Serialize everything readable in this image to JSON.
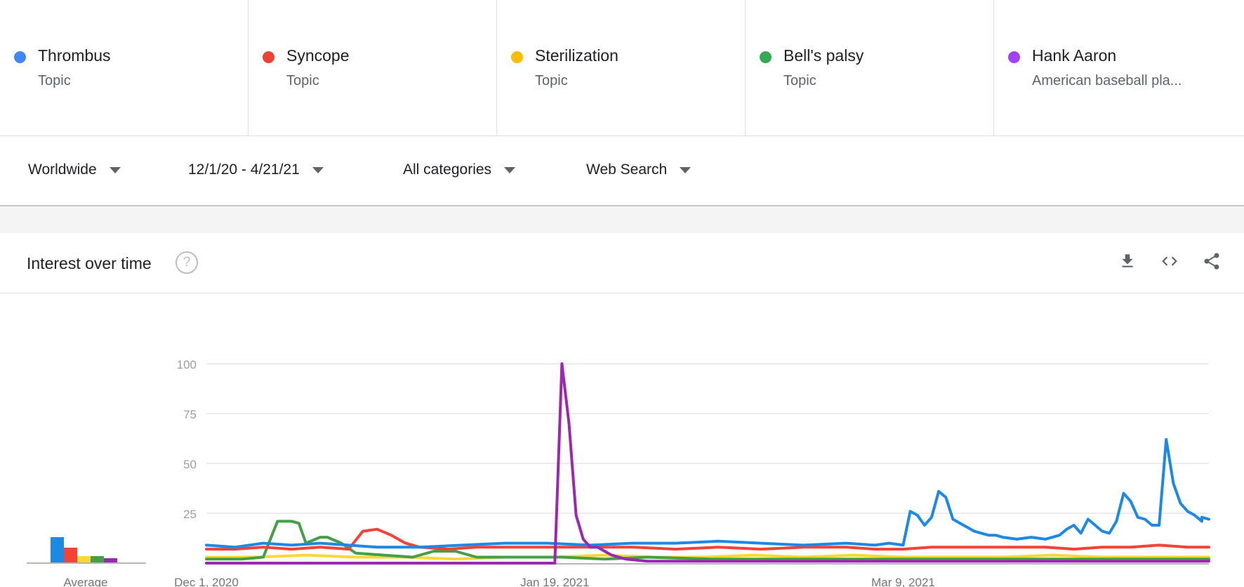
{
  "terms": [
    {
      "name": "Thrombus",
      "sub": "Topic",
      "color": "#4285f4"
    },
    {
      "name": "Syncope",
      "sub": "Topic",
      "color": "#ea4335"
    },
    {
      "name": "Sterilization",
      "sub": "Topic",
      "color": "#fbbc04"
    },
    {
      "name": "Bell's palsy",
      "sub": "Topic",
      "color": "#34a853"
    },
    {
      "name": "Hank Aaron",
      "sub": "American baseball pla...",
      "color": "#a142f4"
    }
  ],
  "filters": {
    "region": "Worldwide",
    "date_range": "12/1/20 - 4/21/21",
    "category": "All categories",
    "search_type": "Web Search"
  },
  "panel": {
    "title": "Interest over time",
    "help_icon": "question-mark-circle-icon",
    "tools": [
      "download-icon",
      "embed-code-icon",
      "share-icon"
    ]
  },
  "average_label": "Average",
  "chart_data": {
    "type": "line",
    "x_ticks": [
      "Dec 1, 2020",
      "Jan 19, 2021",
      "Mar 9, 2021"
    ],
    "x_range": [
      "2020-12-01",
      "2021-04-21"
    ],
    "ylim": [
      0,
      100
    ],
    "y_ticks": [
      "100",
      "75",
      "50",
      "25"
    ],
    "grid": true,
    "averages": [
      {
        "name": "Thrombus",
        "value": 12,
        "color": "#1e88e5"
      },
      {
        "name": "Syncope",
        "value": 7,
        "color": "#f44336"
      },
      {
        "name": "Sterilization",
        "value": 3,
        "color": "#fdd835"
      },
      {
        "name": "Bell's palsy",
        "value": 3,
        "color": "#43a047"
      },
      {
        "name": "Hank Aaron",
        "value": 2,
        "color": "#9c27b0"
      }
    ],
    "series": [
      {
        "name": "Thrombus",
        "color": "#1e88e5",
        "points": [
          [
            "2020-12-01",
            9
          ],
          [
            "2020-12-05",
            8
          ],
          [
            "2020-12-09",
            10
          ],
          [
            "2020-12-13",
            9
          ],
          [
            "2020-12-17",
            10
          ],
          [
            "2020-12-21",
            9
          ],
          [
            "2020-12-25",
            8
          ],
          [
            "2020-12-31",
            8
          ],
          [
            "2021-01-06",
            9
          ],
          [
            "2021-01-12",
            10
          ],
          [
            "2021-01-18",
            10
          ],
          [
            "2021-01-24",
            9
          ],
          [
            "2021-01-30",
            10
          ],
          [
            "2021-02-05",
            10
          ],
          [
            "2021-02-11",
            11
          ],
          [
            "2021-02-17",
            10
          ],
          [
            "2021-02-23",
            9
          ],
          [
            "2021-03-01",
            10
          ],
          [
            "2021-03-05",
            9
          ],
          [
            "2021-03-07",
            10
          ],
          [
            "2021-03-09",
            9
          ],
          [
            "2021-03-10",
            26
          ],
          [
            "2021-03-11",
            24
          ],
          [
            "2021-03-12",
            19
          ],
          [
            "2021-03-13",
            23
          ],
          [
            "2021-03-14",
            36
          ],
          [
            "2021-03-15",
            33
          ],
          [
            "2021-03-16",
            22
          ],
          [
            "2021-03-17",
            20
          ],
          [
            "2021-03-18",
            18
          ],
          [
            "2021-03-19",
            16
          ],
          [
            "2021-03-20",
            15
          ],
          [
            "2021-03-21",
            14
          ],
          [
            "2021-03-22",
            14
          ],
          [
            "2021-03-23",
            13
          ],
          [
            "2021-03-25",
            12
          ],
          [
            "2021-03-27",
            13
          ],
          [
            "2021-03-29",
            12
          ],
          [
            "2021-03-31",
            14
          ],
          [
            "2021-04-01",
            17
          ],
          [
            "2021-04-02",
            19
          ],
          [
            "2021-04-03",
            15
          ],
          [
            "2021-04-04",
            22
          ],
          [
            "2021-04-05",
            19
          ],
          [
            "2021-04-06",
            16
          ],
          [
            "2021-04-07",
            15
          ],
          [
            "2021-04-08",
            21
          ],
          [
            "2021-04-09",
            35
          ],
          [
            "2021-04-10",
            31
          ],
          [
            "2021-04-11",
            23
          ],
          [
            "2021-04-12",
            22
          ],
          [
            "2021-04-13",
            19
          ],
          [
            "2021-04-14",
            19
          ],
          [
            "2021-04-15",
            62
          ],
          [
            "2021-04-16",
            40
          ],
          [
            "2021-04-17",
            30
          ],
          [
            "2021-04-18",
            26
          ],
          [
            "2021-04-19",
            24
          ],
          [
            "2021-04-20",
            21
          ],
          [
            "2021-04-20",
            23
          ],
          [
            "2021-04-21",
            22
          ]
        ]
      },
      {
        "name": "Syncope",
        "color": "#f44336",
        "points": [
          [
            "2020-12-01",
            7
          ],
          [
            "2020-12-05",
            7
          ],
          [
            "2020-12-09",
            8
          ],
          [
            "2020-12-13",
            7
          ],
          [
            "2020-12-17",
            8
          ],
          [
            "2020-12-21",
            7
          ],
          [
            "2020-12-23",
            16
          ],
          [
            "2020-12-25",
            17
          ],
          [
            "2020-12-27",
            14
          ],
          [
            "2020-12-29",
            10
          ],
          [
            "2020-12-31",
            8
          ],
          [
            "2021-01-04",
            7
          ],
          [
            "2021-01-08",
            8
          ],
          [
            "2021-01-12",
            8
          ],
          [
            "2021-01-18",
            8
          ],
          [
            "2021-01-24",
            8
          ],
          [
            "2021-01-30",
            8
          ],
          [
            "2021-02-05",
            7
          ],
          [
            "2021-02-11",
            8
          ],
          [
            "2021-02-17",
            7
          ],
          [
            "2021-02-23",
            8
          ],
          [
            "2021-03-01",
            8
          ],
          [
            "2021-03-05",
            7
          ],
          [
            "2021-03-09",
            7
          ],
          [
            "2021-03-13",
            8
          ],
          [
            "2021-03-17",
            8
          ],
          [
            "2021-03-21",
            8
          ],
          [
            "2021-03-25",
            8
          ],
          [
            "2021-03-29",
            8
          ],
          [
            "2021-04-02",
            7
          ],
          [
            "2021-04-06",
            8
          ],
          [
            "2021-04-10",
            8
          ],
          [
            "2021-04-14",
            9
          ],
          [
            "2021-04-18",
            8
          ],
          [
            "2021-04-21",
            8
          ]
        ]
      },
      {
        "name": "Sterilization",
        "color": "#fdd835",
        "points": [
          [
            "2020-12-01",
            3
          ],
          [
            "2020-12-08",
            3
          ],
          [
            "2020-12-15",
            4
          ],
          [
            "2020-12-22",
            3
          ],
          [
            "2020-12-29",
            3
          ],
          [
            "2021-01-05",
            2
          ],
          [
            "2021-01-12",
            3
          ],
          [
            "2021-01-19",
            3
          ],
          [
            "2021-01-26",
            4
          ],
          [
            "2021-02-02",
            3
          ],
          [
            "2021-02-09",
            3
          ],
          [
            "2021-02-16",
            4
          ],
          [
            "2021-02-23",
            3
          ],
          [
            "2021-03-02",
            4
          ],
          [
            "2021-03-09",
            3
          ],
          [
            "2021-03-16",
            3
          ],
          [
            "2021-03-23",
            3
          ],
          [
            "2021-03-30",
            4
          ],
          [
            "2021-04-06",
            3
          ],
          [
            "2021-04-13",
            3
          ],
          [
            "2021-04-21",
            3
          ]
        ]
      },
      {
        "name": "Bell's palsy",
        "color": "#43a047",
        "points": [
          [
            "2020-12-01",
            2
          ],
          [
            "2020-12-06",
            2
          ],
          [
            "2020-12-09",
            3
          ],
          [
            "2020-12-11",
            21
          ],
          [
            "2020-12-13",
            21
          ],
          [
            "2020-12-14",
            20
          ],
          [
            "2020-12-15",
            10
          ],
          [
            "2020-12-17",
            13
          ],
          [
            "2020-12-18",
            13
          ],
          [
            "2020-12-20",
            10
          ],
          [
            "2020-12-22",
            5
          ],
          [
            "2020-12-26",
            4
          ],
          [
            "2020-12-30",
            3
          ],
          [
            "2021-01-02",
            6
          ],
          [
            "2021-01-05",
            6
          ],
          [
            "2021-01-08",
            3
          ],
          [
            "2021-01-14",
            3
          ],
          [
            "2021-01-20",
            3
          ],
          [
            "2021-01-26",
            2
          ],
          [
            "2021-02-01",
            3
          ],
          [
            "2021-02-10",
            2
          ],
          [
            "2021-02-20",
            2
          ],
          [
            "2021-03-01",
            2
          ],
          [
            "2021-03-10",
            2
          ],
          [
            "2021-03-20",
            2
          ],
          [
            "2021-03-30",
            2
          ],
          [
            "2021-04-10",
            2
          ],
          [
            "2021-04-21",
            2
          ]
        ]
      },
      {
        "name": "Hank Aaron",
        "color": "#9c27b0",
        "points": [
          [
            "2020-12-01",
            0
          ],
          [
            "2021-01-18",
            0
          ],
          [
            "2021-01-19",
            0
          ],
          [
            "2021-01-20",
            100
          ],
          [
            "2021-01-21",
            70
          ],
          [
            "2021-01-22",
            24
          ],
          [
            "2021-01-23",
            12
          ],
          [
            "2021-01-24",
            8
          ],
          [
            "2021-01-25",
            8
          ],
          [
            "2021-01-27",
            4
          ],
          [
            "2021-01-29",
            2
          ],
          [
            "2021-02-01",
            1
          ],
          [
            "2021-02-10",
            1
          ],
          [
            "2021-03-01",
            1
          ],
          [
            "2021-03-15",
            1
          ],
          [
            "2021-04-01",
            1
          ],
          [
            "2021-04-21",
            1
          ]
        ]
      }
    ]
  }
}
